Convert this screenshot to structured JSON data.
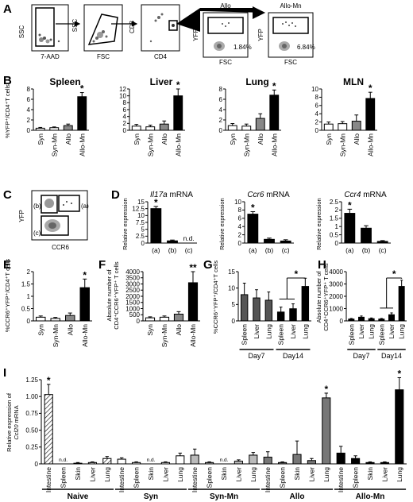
{
  "panels": {
    "A": {
      "label": "A",
      "plots": [
        {
          "x": "7-AAD",
          "y": "SSC"
        },
        {
          "x": "FSC",
          "y": "SSC"
        },
        {
          "x": "CD4",
          "y": "CD8"
        },
        {
          "x": "FSC",
          "y": "YFP",
          "title": "Allo",
          "pct": "1.84%"
        },
        {
          "x": "FSC",
          "y": "YFP",
          "title": "Allo-Mn",
          "pct": "6.84%"
        }
      ]
    },
    "C": {
      "label": "C",
      "x": "CCR6",
      "y": "YFP",
      "gates": [
        "(a)",
        "(b)",
        "(c)"
      ]
    },
    "D_nd": "n.d.",
    "I_nd": "n.d.",
    "star": "*",
    "dstar": "**"
  },
  "chart_data": [
    {
      "id": "B",
      "panel": "B",
      "type": "bar",
      "ylabel": "%YFP⁺/CD4⁺T cells",
      "subplots": [
        {
          "title": "Spleen",
          "categories": [
            "Syn",
            "Syn-Mn",
            "Allo",
            "Allo-Mn"
          ],
          "values": [
            0.4,
            0.5,
            0.9,
            6.5
          ],
          "errors": [
            0.15,
            0.15,
            0.3,
            0.8
          ],
          "ylim": [
            0,
            8
          ],
          "yticks": [
            0,
            2,
            4,
            6,
            8
          ],
          "sig": [
            false,
            false,
            false,
            true
          ]
        },
        {
          "title": "Liver",
          "categories": [
            "Syn",
            "Syn-Mn",
            "Allo",
            "Allo-Mn"
          ],
          "values": [
            1.2,
            1.0,
            1.8,
            10
          ],
          "errors": [
            0.5,
            0.5,
            0.9,
            2.0
          ],
          "ylim": [
            0,
            12
          ],
          "yticks": [
            0,
            2,
            4,
            6,
            8,
            10,
            12
          ],
          "sig": [
            false,
            false,
            false,
            true
          ]
        },
        {
          "title": "Lung",
          "categories": [
            "Syn",
            "Syn-Mn",
            "Allo",
            "Allo-Mn"
          ],
          "values": [
            0.9,
            0.8,
            2.3,
            6.8
          ],
          "errors": [
            0.4,
            0.4,
            0.9,
            1.0
          ],
          "ylim": [
            0,
            8
          ],
          "yticks": [
            0,
            2,
            4,
            6,
            8
          ],
          "sig": [
            false,
            false,
            false,
            true
          ]
        },
        {
          "title": "MLN",
          "categories": [
            "Syn",
            "Syn-Mn",
            "Allo",
            "Allo-Mn"
          ],
          "values": [
            1.5,
            1.6,
            2.2,
            7.7
          ],
          "errors": [
            0.5,
            0.5,
            1.5,
            1.5
          ],
          "ylim": [
            0,
            10
          ],
          "yticks": [
            0,
            2,
            4,
            6,
            8,
            10
          ],
          "sig": [
            false,
            false,
            false,
            true
          ]
        }
      ]
    },
    {
      "id": "D",
      "panel": "D",
      "type": "bar",
      "ylabel": "Relative expression",
      "subplots": [
        {
          "title": "Il17a mRNA",
          "title_italic": "Il17a",
          "title_rest": " mRNA",
          "categories": [
            "(a)",
            "(b)",
            "(c)"
          ],
          "values": [
            12.5,
            0.8,
            null
          ],
          "errors": [
            0.8,
            0.3,
            null
          ],
          "ylim": [
            0,
            15
          ],
          "yticks": [
            0,
            2.5,
            5.0,
            7.5,
            10.0,
            12.5,
            15.0
          ],
          "sig": [
            true,
            false,
            false
          ],
          "nd": [
            false,
            false,
            true
          ]
        },
        {
          "title": "Ccr6 mRNA",
          "title_italic": "Ccr6",
          "title_rest": " mRNA",
          "categories": [
            "(a)",
            "(b)",
            "(c)"
          ],
          "values": [
            7.0,
            0.9,
            0.5
          ],
          "errors": [
            0.6,
            0.3,
            0.3
          ],
          "ylim": [
            0,
            10
          ],
          "yticks": [
            0,
            2,
            4,
            6,
            8,
            10
          ],
          "sig": [
            true,
            false,
            false
          ]
        },
        {
          "title": "Ccr4 mRNA",
          "title_italic": "Ccr4",
          "title_rest": " mRNA",
          "categories": [
            "(a)",
            "(b)",
            "(c)"
          ],
          "values": [
            1.8,
            0.9,
            0.1
          ],
          "errors": [
            0.25,
            0.15,
            0.05
          ],
          "ylim": [
            0,
            2.5
          ],
          "yticks": [
            0,
            0.5,
            1.0,
            1.5,
            2.0,
            2.5
          ],
          "sig": [
            true,
            false,
            false
          ]
        }
      ]
    },
    {
      "id": "E",
      "panel": "E",
      "type": "bar",
      "ylabel": "%CCR6⁺YFP⁺/CD4⁺T cells",
      "categories": [
        "Syn",
        "Syn-Mn",
        "Allo",
        "Allo-Mn"
      ],
      "values": [
        0.15,
        0.1,
        0.22,
        1.35
      ],
      "errors": [
        0.05,
        0.04,
        0.1,
        0.35
      ],
      "ylim": [
        0,
        2.0
      ],
      "yticks": [
        0,
        0.5,
        1.0,
        1.5,
        2.0
      ],
      "sig": [
        false,
        false,
        false,
        true
      ]
    },
    {
      "id": "F",
      "panel": "F",
      "type": "bar",
      "ylabel": "Absolute number of CD4⁺CCR6⁺YFP⁺ T cells",
      "ylabel1": "Absolute number of",
      "ylabel2": "CD4⁺CCR6⁺YFP⁺ T cells",
      "categories": [
        "Syn",
        "Syn-Mn",
        "Allo",
        "Allo-Mn"
      ],
      "values": [
        250,
        300,
        550,
        3100
      ],
      "errors": [
        80,
        100,
        200,
        900
      ],
      "ylim": [
        0,
        4000
      ],
      "yticks": [
        0,
        500,
        1000,
        1500,
        2000,
        2500,
        3000,
        3500,
        4000
      ],
      "sig": [
        false,
        false,
        false,
        "**"
      ]
    },
    {
      "id": "G",
      "panel": "G",
      "type": "bar",
      "ylabel": "%CCR6⁺YFP⁺/CD4⁺T cells",
      "categories": [
        "Spleen",
        "Liver",
        "Lung",
        "Spleen",
        "Liver",
        "Lung"
      ],
      "groups": [
        {
          "label": "Day7",
          "span": [
            0,
            2
          ]
        },
        {
          "label": "Day14",
          "span": [
            3,
            5
          ]
        }
      ],
      "values": [
        8,
        7,
        6.3,
        2.7,
        3.7,
        10.5
      ],
      "errors": [
        3.5,
        2.5,
        2.5,
        1.5,
        1.5,
        2.5
      ],
      "ylim": [
        0,
        15
      ],
      "yticks": [
        0,
        5,
        10,
        15
      ],
      "fills": [
        "#555555",
        "#555555",
        "#555555",
        "#000000",
        "#000000",
        "#000000"
      ]
    },
    {
      "id": "H",
      "panel": "H",
      "type": "bar",
      "ylabel": "Absolute number of CD4⁺CCR6⁺YFP⁺ T cells",
      "ylabel1": "Absolute number of",
      "ylabel2": "CD4⁺CCR6⁺YFP⁺ T cells",
      "categories": [
        "Spleen",
        "Liver",
        "Lung",
        "Spleen",
        "Liver",
        "Lung"
      ],
      "groups": [
        {
          "label": "Day7",
          "span": [
            0,
            2
          ]
        },
        {
          "label": "Day14",
          "span": [
            3,
            5
          ]
        }
      ],
      "values": [
        150,
        300,
        180,
        150,
        500,
        2800
      ],
      "errors": [
        50,
        100,
        60,
        50,
        150,
        500
      ],
      "ylim": [
        0,
        4000
      ],
      "yticks": [
        0,
        1000,
        2000,
        3000,
        4000
      ],
      "fills": [
        "#000000",
        "#000000",
        "#000000",
        "#000000",
        "#000000",
        "#000000"
      ]
    },
    {
      "id": "I",
      "panel": "I",
      "type": "bar",
      "ylabel": "Relative expression of Ccl20 mRNA",
      "ylabel1": "Relative expression of",
      "ylabel2_italic": "Ccl20",
      "ylabel2_rest": " mRNA",
      "groups": [
        {
          "label": "Naive",
          "fill": "hatch",
          "tissues": [
            "Intestine",
            "Spleen",
            "Skin",
            "Liver",
            "Lung"
          ],
          "values": [
            1.03,
            null,
            0.01,
            0.02,
            0.08
          ],
          "errors": [
            0.15,
            null,
            0.01,
            0.01,
            0.03
          ],
          "nd": [
            false,
            true,
            false,
            false,
            false
          ],
          "sig": [
            true,
            false,
            false,
            false,
            false
          ]
        },
        {
          "label": "Syn",
          "fill": "#ffffff",
          "tissues": [
            "Intestine",
            "Spleen",
            "Skin",
            "Liver",
            "Lung"
          ],
          "values": [
            0.07,
            0.02,
            null,
            0.02,
            0.12
          ],
          "errors": [
            0.02,
            0.01,
            null,
            0.01,
            0.04
          ],
          "nd": [
            false,
            false,
            true,
            false,
            false
          ],
          "sig": [
            false,
            false,
            false,
            false,
            false
          ]
        },
        {
          "label": "Syn-Mn",
          "fill": "#bbbbbb",
          "tissues": [
            "Intestine",
            "Spleen",
            "Skin",
            "Liver",
            "Lung"
          ],
          "values": [
            0.13,
            0.02,
            null,
            0.04,
            0.13
          ],
          "errors": [
            0.09,
            0.01,
            null,
            0.02,
            0.04
          ],
          "nd": [
            false,
            false,
            true,
            false,
            false
          ],
          "sig": [
            false,
            false,
            false,
            false,
            false
          ]
        },
        {
          "label": "Allo",
          "fill": "#777777",
          "tissues": [
            "Intestine",
            "Spleen",
            "Skin",
            "Liver",
            "Lung"
          ],
          "values": [
            0.1,
            0.02,
            0.14,
            0.05,
            0.98
          ],
          "errors": [
            0.08,
            0.01,
            0.2,
            0.03,
            0.07
          ],
          "nd": [
            false,
            false,
            false,
            false,
            false
          ],
          "sig": [
            false,
            false,
            false,
            false,
            true
          ]
        },
        {
          "label": "Allo-Mn",
          "fill": "#000000",
          "tissues": [
            "Intestine",
            "Spleen",
            "Skin",
            "Liver",
            "Lung"
          ],
          "values": [
            0.16,
            0.08,
            0.02,
            0.02,
            1.1
          ],
          "errors": [
            0.1,
            0.04,
            0.01,
            0.01,
            0.18
          ],
          "nd": [
            false,
            false,
            false,
            false,
            false
          ],
          "sig": [
            false,
            false,
            false,
            false,
            true
          ]
        }
      ],
      "ylim": [
        0,
        1.25
      ],
      "yticks": [
        0,
        0.25,
        0.5,
        0.75,
        1.0,
        1.25
      ],
      "ytick_labels": [
        "0",
        "0.25",
        "0.50",
        "0.75",
        "1.00",
        "1.25"
      ]
    }
  ]
}
